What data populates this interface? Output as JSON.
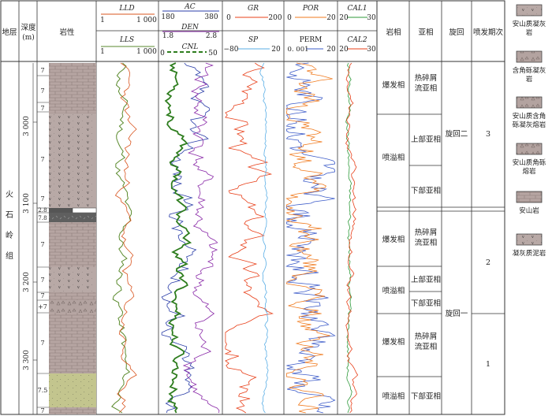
{
  "headers": {
    "stratum": "地层",
    "depth": "深度",
    "depth_unit": "(m)",
    "lithology": "岩性",
    "facies": "岩相",
    "subfacies": "亚相",
    "cycle": "旋回",
    "period": "喷发期次"
  },
  "tracks": {
    "lld": {
      "name": "LLD",
      "min": "1",
      "max": "1 000",
      "color": "#d9541e"
    },
    "lls": {
      "name": "LLS",
      "min": "1",
      "max": "1 000",
      "color": "#5a8a2c"
    },
    "ac": {
      "name": "AC",
      "min": "180",
      "max": "380",
      "color": "#2b3ea8"
    },
    "den": {
      "name": "DEN",
      "min": "1.8",
      "max": "2.8",
      "color": "#8a2aa8"
    },
    "cnl": {
      "name": "CNL",
      "min": "0",
      "max": "50",
      "color": "#2e7d1e"
    },
    "gr": {
      "name": "GR",
      "min": "0",
      "max": "200",
      "color": "#e8401a"
    },
    "sp": {
      "name": "SP",
      "min": "−80",
      "max": "20",
      "color": "#5aaee6"
    },
    "por": {
      "name": "POR",
      "min": "0",
      "max": "20",
      "color": "#f07a1e"
    },
    "perm": {
      "name": "PERM",
      "min": "0. 001",
      "max": "20",
      "color": "#3d5cc9"
    },
    "cal1": {
      "name": "CAL1",
      "min": "20",
      "max": "30",
      "color": "#2e9a3a"
    },
    "cal2": {
      "name": "CAL2",
      "min": "20",
      "max": "30",
      "color": "#e8401a"
    }
  },
  "formation": "火石岭组",
  "depth_ticks": [
    "3 000",
    "3 100",
    "3 200",
    "3 300"
  ],
  "litho_labels": [
    "7",
    "7",
    "7",
    "7",
    "7",
    "2.8",
    "7.8",
    "7",
    "7",
    "7",
    "+7",
    "7",
    "7.5",
    "7"
  ],
  "facies_rows": [
    {
      "facies": "爆发相",
      "subfacies": "热碎屑流亚相"
    },
    {
      "facies": "喷溢相",
      "subfacies_upper": "上部亚相",
      "subfacies_lower": "下部亚相"
    },
    {
      "facies": "爆发相",
      "subfacies": "热碎屑流亚相"
    },
    {
      "facies": "喷溢相",
      "subfacies_upper": "上部亚相",
      "subfacies_lower": "下部亚相"
    },
    {
      "facies": "爆发相",
      "subfacies": "热碎屑流亚相"
    },
    {
      "facies": "喷溢相",
      "subfacies": "下部亚相"
    }
  ],
  "cycles": [
    "旋回二",
    "旋回一"
  ],
  "periods": [
    "3",
    "2",
    "1"
  ],
  "legend": [
    {
      "label": "安山质凝灰岩",
      "pattern": "tuff"
    },
    {
      "label": "含角砾凝灰岩",
      "pattern": "breccia-tuff"
    },
    {
      "label": "安山质含角砾凝灰熔岩",
      "pattern": "breccia-lava"
    },
    {
      "label": "安山质角砾熔岩",
      "pattern": "breccia"
    },
    {
      "label": "安山岩",
      "pattern": "andesite"
    },
    {
      "label": "凝灰质泥岩",
      "pattern": "mudstone"
    }
  ]
}
